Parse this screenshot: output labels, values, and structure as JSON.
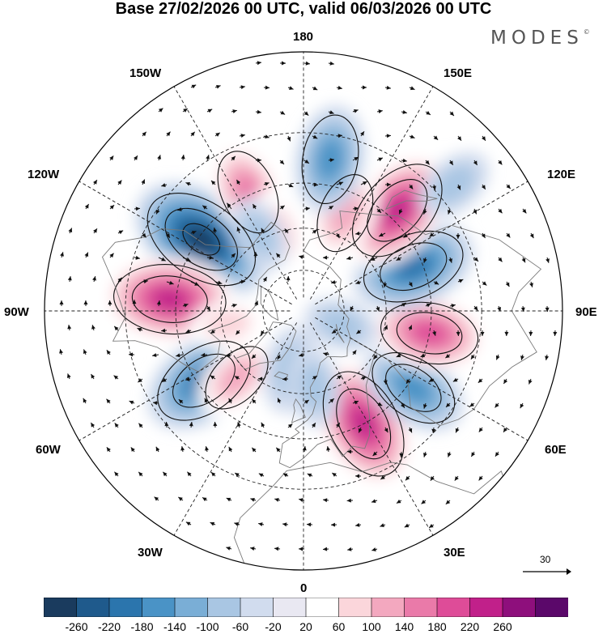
{
  "title": "Base 27/02/2026 00 UTC, valid 06/03/2026 00 UTC",
  "brand": "MODES",
  "brand_mark": "©",
  "lon_labels": {
    "top": "180",
    "bottom": "0",
    "left": "90W",
    "right": "90E",
    "upper_left_1": "150W",
    "upper_left_2": "120W",
    "upper_right_1": "150E",
    "upper_right_2": "120E",
    "lower_left_1": "60W",
    "lower_left_2": "30W",
    "lower_right_1": "60E",
    "lower_right_2": "30E"
  },
  "reference_vector": {
    "value": "30"
  },
  "colorbar": {
    "ticks": [
      "-260",
      "-220",
      "-180",
      "-140",
      "-100",
      "-60",
      "-20",
      "20",
      "60",
      "100",
      "140",
      "180",
      "220",
      "260"
    ],
    "colors": [
      "#1a3b5e",
      "#1f5a8c",
      "#2b75ad",
      "#4a93c6",
      "#7aaed6",
      "#a9c6e3",
      "#d1dcee",
      "#e9e8f2",
      "#ffffff",
      "#fbd6db",
      "#f3a8bf",
      "#ea7aa9",
      "#de4c98",
      "#c1208a",
      "#8e0f7c",
      "#5b086a"
    ]
  },
  "chart_data": {
    "type": "polar_stereographic_anomaly_map",
    "projection": "north polar stereographic",
    "field": "height anomaly with wind vectors",
    "base_time": "27/02/2026 00 UTC",
    "valid_time": "06/03/2026 00 UTC",
    "contour_levels": [
      -260,
      -220,
      -180,
      -140,
      -100,
      -60,
      -20,
      20,
      60,
      100,
      140,
      180,
      220,
      260
    ],
    "reference_vector": 30,
    "anomaly_centers": [
      {
        "lon": -125,
        "lat": 46,
        "value": -260
      },
      {
        "lon": -95,
        "lat": 43,
        "value": 230
      },
      {
        "lon": -55,
        "lat": 47,
        "value": -200
      },
      {
        "lon": 28,
        "lat": 45,
        "value": 230
      },
      {
        "lon": 55,
        "lat": 43,
        "value": -160
      },
      {
        "lon": 80,
        "lat": 45,
        "value": 180
      },
      {
        "lon": 112,
        "lat": 48,
        "value": -200
      },
      {
        "lon": 137,
        "lat": 42,
        "value": 220
      },
      {
        "lon": 157,
        "lat": 52,
        "value": 120
      },
      {
        "lon": 170,
        "lat": 37,
        "value": -150
      },
      {
        "lon": -155,
        "lat": 44,
        "value": 140
      },
      {
        "lon": -162,
        "lat": 60,
        "value": 90
      },
      {
        "lon": -45,
        "lat": 56,
        "value": 100
      },
      {
        "lon": -12,
        "lat": 68,
        "value": -90
      },
      {
        "lon": 8,
        "lat": 62,
        "value": -70
      },
      {
        "lon": 70,
        "lat": 75,
        "value": -60
      },
      {
        "lon": -150,
        "lat": 58,
        "value": -60
      },
      {
        "lon": 130,
        "lat": 25,
        "value": -70
      },
      {
        "lon": -80,
        "lat": 62,
        "value": 60
      }
    ]
  }
}
